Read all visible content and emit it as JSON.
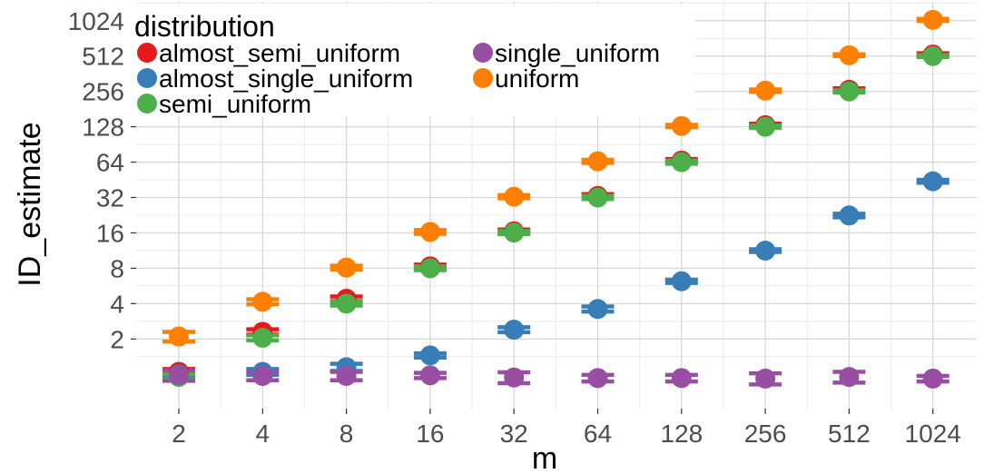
{
  "chart_data": {
    "type": "scatter",
    "xlabel": "m",
    "ylabel": "ID_estimate",
    "scale": "log2",
    "grid": true,
    "legend_placement": "top-left",
    "x_ticks": [
      "2",
      "4",
      "8",
      "16",
      "32",
      "64",
      "128",
      "256",
      "512",
      "1024"
    ],
    "y_ticks": [
      "2",
      "4",
      "8",
      "16",
      "32",
      "64",
      "128",
      "256",
      "512",
      "1024"
    ],
    "y_range": [
      0.6,
      1300
    ],
    "legend": {
      "title": "distribution",
      "entries": [
        "almost_semi_uniform",
        "single_uniform",
        "almost_single_uniform",
        "uniform",
        "semi_uniform"
      ]
    },
    "series": [
      {
        "name": "almost_semi_uniform",
        "color": "#e41a1c",
        "x": [
          2,
          4,
          8,
          16,
          32,
          64,
          128,
          256,
          512,
          1024
        ],
        "y": [
          1.05,
          2.3,
          4.4,
          8.3,
          16.5,
          33,
          66,
          132,
          264,
          527
        ],
        "err": [
          0.06,
          0.12,
          0.2,
          0.3,
          0.6,
          1.2,
          2,
          4,
          8,
          14
        ]
      },
      {
        "name": "almost_single_uniform",
        "color": "#377eb8",
        "x": [
          2,
          4,
          8,
          16,
          32,
          64,
          128,
          256,
          512,
          1024
        ],
        "y": [
          1.0,
          1.05,
          1.15,
          1.45,
          2.4,
          3.6,
          6.2,
          11.3,
          22.5,
          44
        ],
        "err": [
          0.06,
          0.06,
          0.08,
          0.06,
          0.12,
          0.18,
          0.2,
          0.3,
          0.8,
          1.3
        ]
      },
      {
        "name": "semi_uniform",
        "color": "#4daf4a",
        "x": [
          2,
          4,
          8,
          16,
          32,
          64,
          128,
          256,
          512,
          1024
        ],
        "y": [
          0.95,
          2.05,
          4.0,
          8.0,
          16.1,
          32,
          64,
          128,
          256,
          512
        ],
        "err": [
          0.05,
          0.1,
          0.15,
          0.3,
          0.5,
          1,
          2,
          3,
          6,
          10
        ]
      },
      {
        "name": "single_uniform",
        "color": "#984ea3",
        "x": [
          2,
          4,
          8,
          16,
          32,
          64,
          128,
          256,
          512,
          1024
        ],
        "y": [
          0.98,
          0.97,
          0.97,
          0.98,
          0.94,
          0.93,
          0.93,
          0.92,
          0.95,
          0.92
        ],
        "err": [
          0.1,
          0.08,
          0.08,
          0.05,
          0.1,
          0.06,
          0.06,
          0.1,
          0.1,
          0.05
        ]
      },
      {
        "name": "uniform",
        "color": "#ff7f00",
        "x": [
          2,
          4,
          8,
          16,
          32,
          64,
          128,
          256,
          512,
          1024
        ],
        "y": [
          2.1,
          4.15,
          8.1,
          16.3,
          32.5,
          65,
          130,
          260,
          520,
          1040
        ],
        "err": [
          0.2,
          0.2,
          0.3,
          0.6,
          1,
          2,
          3,
          6,
          10,
          20
        ]
      }
    ]
  }
}
